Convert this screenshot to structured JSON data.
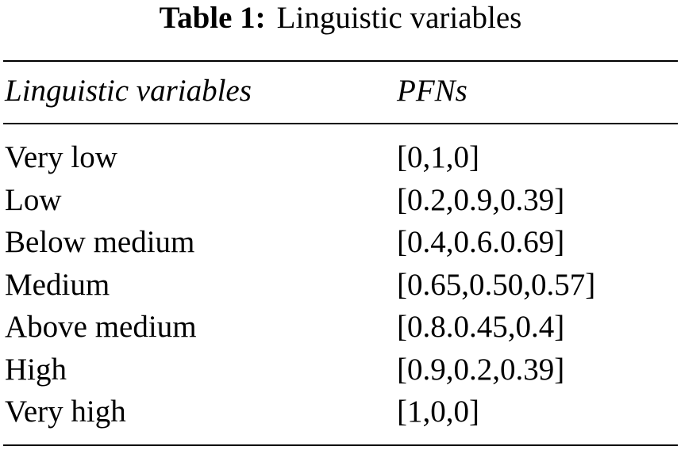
{
  "caption": {
    "label": "Table 1:",
    "title": "Linguistic variables"
  },
  "table": {
    "columns": [
      "Linguistic variables",
      "PFNs"
    ],
    "rows": [
      [
        "Very low",
        "[0,1,0]"
      ],
      [
        "Low",
        "[0.2,0.9,0.39]"
      ],
      [
        "Below medium",
        "[0.4,0.6.0.69]"
      ],
      [
        "Medium",
        "[0.65,0.50,0.57]"
      ],
      [
        "Above medium",
        "[0.8.0.45,0.4]"
      ],
      [
        "High",
        "[0.9,0.2,0.39]"
      ],
      [
        "Very high",
        "[1,0,0]"
      ]
    ]
  }
}
